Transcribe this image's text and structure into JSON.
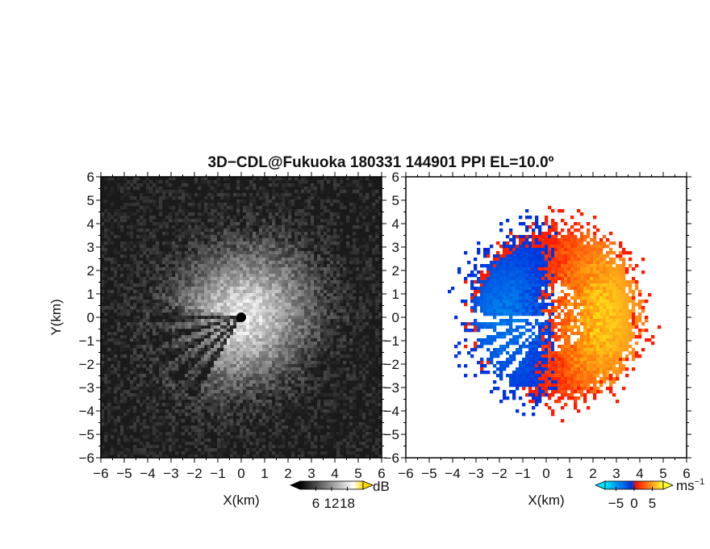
{
  "title": "3D−CDL@Fukuoka 180331 144901 PPI EL=10.0º",
  "chart_data": [
    {
      "type": "heatmap",
      "name": "reflectivity-ppi",
      "xlabel": "X(km)",
      "ylabel": "Y(km)",
      "xlim": [
        -6,
        6
      ],
      "ylim": [
        -6,
        6
      ],
      "xticks": [
        "−6",
        "−5",
        "−4",
        "−3",
        "−2",
        "−1",
        "0",
        "1",
        "2",
        "3",
        "4",
        "5",
        "6"
      ],
      "yticks": [
        "6",
        "5",
        "4",
        "3",
        "2",
        "1",
        "0",
        "−1",
        "−2",
        "−3",
        "−4",
        "−5",
        "−6"
      ],
      "colorbar": {
        "unit": "dB",
        "ticks": [
          "6",
          "12",
          "18"
        ],
        "tick_values": [
          6,
          12,
          18
        ],
        "range": [
          0,
          24
        ],
        "colormap": "grayscale-to-yellow",
        "colors": [
          "#000000",
          "#ffffff",
          "#ffd700"
        ]
      },
      "features": {
        "echo_radius_km": 3.5,
        "blocked_sector_deg": [
          170,
          240
        ],
        "center_marker": "black-dot"
      }
    },
    {
      "type": "heatmap",
      "name": "doppler-velocity-ppi",
      "xlabel": "X(km)",
      "xlim": [
        -6,
        6
      ],
      "ylim": [
        -6,
        6
      ],
      "xticks": [
        "−6",
        "−5",
        "−4",
        "−3",
        "−2",
        "−1",
        "0",
        "1",
        "2",
        "3",
        "4",
        "5",
        "6"
      ],
      "colorbar": {
        "unit": "ms",
        "unit_superscript": "−1",
        "ticks": [
          "−5",
          "0",
          "5"
        ],
        "tick_values": [
          -5,
          0,
          5
        ],
        "range": [
          -8,
          8
        ],
        "colormap": "cyan-blue-red-yellow",
        "colors": [
          "#00e5ff",
          "#0033dd",
          "#ff1a00",
          "#ffff33"
        ]
      },
      "features": {
        "echo_radius_km": 3.6,
        "approaching_side": "west",
        "receding_side": "east"
      }
    }
  ]
}
